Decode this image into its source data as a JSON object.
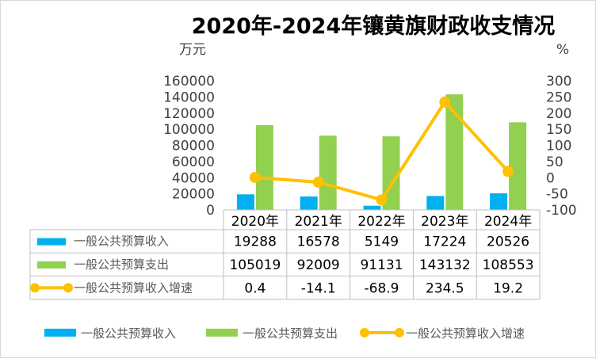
{
  "chart_data": {
    "type": "bar",
    "title": "2020年-2024年镶黄旗财政收支情况",
    "left_unit": "万元",
    "right_unit": "%",
    "categories": [
      "2020年",
      "2021年",
      "2022年",
      "2023年",
      "2024年"
    ],
    "y_left_ticks": [
      "0",
      "20000",
      "40000",
      "60000",
      "80000",
      "100000",
      "120000",
      "140000",
      "160000"
    ],
    "y_right_ticks": [
      "-100",
      "-50",
      "0",
      "50",
      "100",
      "150",
      "200",
      "250",
      "300"
    ],
    "ylim_left": [
      0,
      160000
    ],
    "ylim_right": [
      -100,
      300
    ],
    "series": [
      {
        "name": "一般公共预算收入",
        "type": "bar",
        "axis": "left",
        "color": "#00B0F0",
        "values": [
          19288,
          16578,
          5149,
          17224,
          20526
        ],
        "labels": [
          "19288",
          "16578",
          "5149",
          "17224",
          "20526"
        ]
      },
      {
        "name": "一般公共预算支出",
        "type": "bar",
        "axis": "left",
        "color": "#92D050",
        "values": [
          105019,
          92009,
          91131,
          143132,
          108553
        ],
        "labels": [
          "105019",
          "92009",
          "91131",
          "143132",
          "108553"
        ]
      },
      {
        "name": "一般公共预算收入增速",
        "type": "line",
        "axis": "right",
        "color": "#FFC000",
        "values": [
          0.4,
          -14.1,
          -68.9,
          234.5,
          19.2
        ],
        "labels": [
          "0.4",
          "-14.1",
          "-68.9",
          "234.5",
          "19.2"
        ]
      }
    ],
    "legend": "bottom",
    "data_table": true,
    "grid": false
  }
}
